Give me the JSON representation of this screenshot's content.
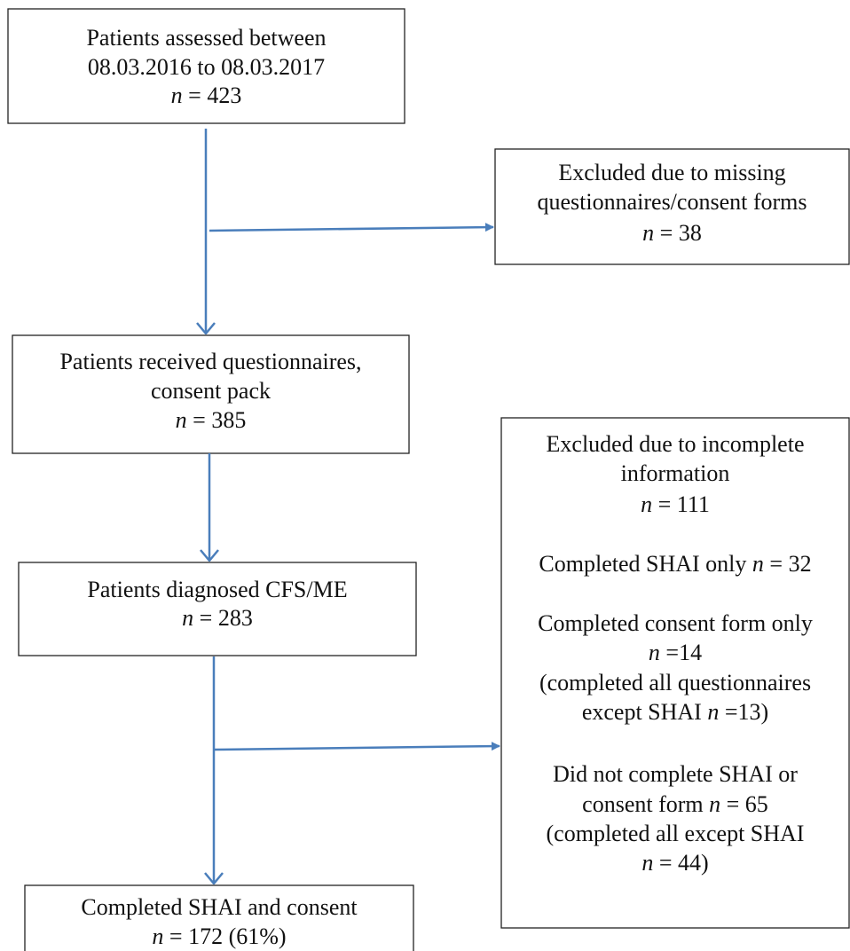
{
  "nodes": [
    {
      "lines": [
        [
          "Patients assessed between"
        ],
        [
          "08.03.2016 to 08.03.2017"
        ],
        [
          {
            "italic": "n"
          },
          " = 423"
        ]
      ]
    },
    {
      "lines": [
        [
          "Excluded due to missing"
        ],
        [
          "questionnaires/consent forms"
        ],
        [
          {
            "italic": "n"
          },
          " = 38"
        ]
      ]
    },
    {
      "lines": [
        [
          "Patients received questionnaires,"
        ],
        [
          "consent pack"
        ],
        [
          {
            "italic": "n"
          },
          " = 385"
        ]
      ]
    },
    {
      "lines": [
        [
          "Patients diagnosed CFS/ME"
        ],
        [
          {
            "italic": "n"
          },
          " = 283"
        ]
      ]
    },
    {
      "lines": [
        [
          "Completed SHAI and consent"
        ],
        [
          {
            "italic": "n"
          },
          " = 172 (61%)"
        ]
      ]
    },
    {
      "lines": [
        [
          "Excluded due to incomplete"
        ],
        [
          "information"
        ],
        [
          {
            "italic": "n"
          },
          " = 111"
        ],
        [
          "Completed SHAI only ",
          {
            "italic": "n"
          },
          " = 32"
        ],
        [
          "Completed consent form only"
        ],
        [
          {
            "italic": "n"
          },
          " =14"
        ],
        [
          "(completed all questionnaires"
        ],
        [
          "except SHAI ",
          {
            "italic": "n"
          },
          " =13)"
        ],
        [
          "Did not complete SHAI or"
        ],
        [
          "consent form ",
          {
            "italic": "n"
          },
          " = 65"
        ],
        [
          "(completed all except SHAI"
        ],
        [
          {
            "italic": "n"
          },
          " = 44)"
        ]
      ]
    }
  ]
}
